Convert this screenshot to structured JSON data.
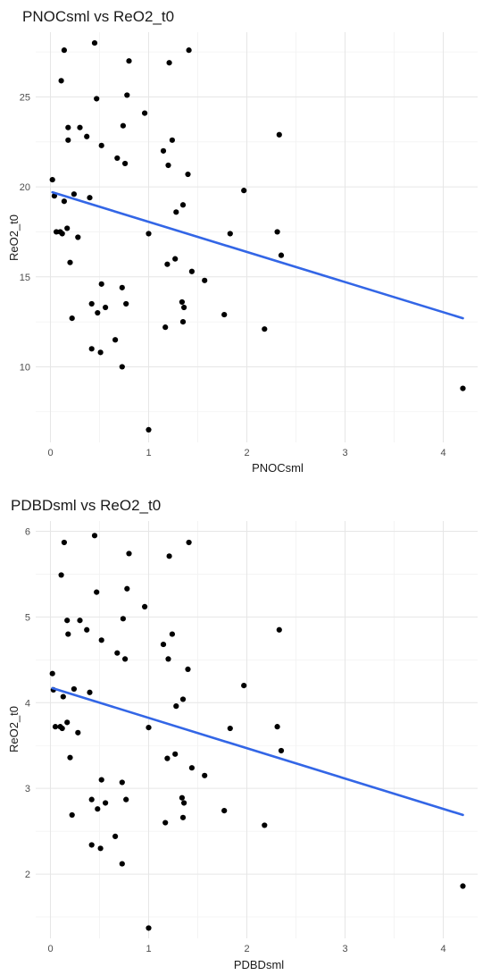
{
  "accent_color": "#3366e6",
  "point_color": "#000000",
  "chart_data": [
    {
      "type": "scatter",
      "title": "PNOCsml vs ReO2_t0",
      "xlabel": "PNOCsml",
      "ylabel": "ReO2_t0",
      "xlim": [
        -0.15,
        4.35
      ],
      "ylim": [
        5.8,
        28.6
      ],
      "xticks": [
        0,
        1,
        2,
        3,
        4
      ],
      "yticks": [
        10,
        15,
        20,
        25
      ],
      "grid": true,
      "legend": "none",
      "trend_line": {
        "x": [
          0.02,
          4.2
        ],
        "y": [
          19.7,
          12.7
        ]
      },
      "points": [
        {
          "x": 0.02,
          "y": 20.4
        },
        {
          "x": 0.04,
          "y": 19.5
        },
        {
          "x": 0.06,
          "y": 17.5
        },
        {
          "x": 0.1,
          "y": 17.5
        },
        {
          "x": 0.11,
          "y": 25.9
        },
        {
          "x": 0.12,
          "y": 17.4
        },
        {
          "x": 0.14,
          "y": 19.2
        },
        {
          "x": 0.14,
          "y": 27.6
        },
        {
          "x": 0.17,
          "y": 17.7
        },
        {
          "x": 0.18,
          "y": 23.3
        },
        {
          "x": 0.18,
          "y": 22.6
        },
        {
          "x": 0.2,
          "y": 15.8
        },
        {
          "x": 0.22,
          "y": 12.7
        },
        {
          "x": 0.24,
          "y": 19.6
        },
        {
          "x": 0.28,
          "y": 17.2
        },
        {
          "x": 0.3,
          "y": 23.3
        },
        {
          "x": 0.37,
          "y": 22.8
        },
        {
          "x": 0.4,
          "y": 19.4
        },
        {
          "x": 0.42,
          "y": 13.5
        },
        {
          "x": 0.42,
          "y": 11.0
        },
        {
          "x": 0.45,
          "y": 28.0
        },
        {
          "x": 0.47,
          "y": 24.9
        },
        {
          "x": 0.48,
          "y": 13.0
        },
        {
          "x": 0.52,
          "y": 22.3
        },
        {
          "x": 0.51,
          "y": 10.8
        },
        {
          "x": 0.52,
          "y": 14.6
        },
        {
          "x": 0.56,
          "y": 13.3
        },
        {
          "x": 0.66,
          "y": 11.5
        },
        {
          "x": 0.68,
          "y": 21.6
        },
        {
          "x": 0.73,
          "y": 14.4
        },
        {
          "x": 0.73,
          "y": 10.0
        },
        {
          "x": 0.74,
          "y": 23.4
        },
        {
          "x": 0.76,
          "y": 21.3
        },
        {
          "x": 0.77,
          "y": 13.5
        },
        {
          "x": 0.78,
          "y": 25.1
        },
        {
          "x": 0.8,
          "y": 27.0
        },
        {
          "x": 0.96,
          "y": 24.1
        },
        {
          "x": 1.0,
          "y": 17.4
        },
        {
          "x": 1.0,
          "y": 6.5
        },
        {
          "x": 1.15,
          "y": 22.0
        },
        {
          "x": 1.17,
          "y": 12.2
        },
        {
          "x": 1.19,
          "y": 15.7
        },
        {
          "x": 1.2,
          "y": 21.2
        },
        {
          "x": 1.21,
          "y": 26.9
        },
        {
          "x": 1.24,
          "y": 22.6
        },
        {
          "x": 1.27,
          "y": 16.0
        },
        {
          "x": 1.28,
          "y": 18.6
        },
        {
          "x": 1.34,
          "y": 13.6
        },
        {
          "x": 1.35,
          "y": 19.0
        },
        {
          "x": 1.36,
          "y": 13.3
        },
        {
          "x": 1.35,
          "y": 12.5
        },
        {
          "x": 1.4,
          "y": 20.7
        },
        {
          "x": 1.41,
          "y": 27.6
        },
        {
          "x": 1.44,
          "y": 15.3
        },
        {
          "x": 1.57,
          "y": 14.8
        },
        {
          "x": 1.77,
          "y": 12.9
        },
        {
          "x": 1.83,
          "y": 17.4
        },
        {
          "x": 1.97,
          "y": 19.8
        },
        {
          "x": 2.18,
          "y": 12.1
        },
        {
          "x": 2.31,
          "y": 17.5
        },
        {
          "x": 2.33,
          "y": 22.9
        },
        {
          "x": 2.35,
          "y": 16.2
        },
        {
          "x": 4.2,
          "y": 8.8
        }
      ]
    },
    {
      "type": "scatter",
      "title": "PDBDsml vs ReO2_t0",
      "xlabel": "PDBDsml",
      "ylabel": "ReO2_t0",
      "xlim": [
        -0.15,
        4.35
      ],
      "ylim": [
        1.25,
        6.12
      ],
      "xticks": [
        0,
        1,
        2,
        3,
        4
      ],
      "yticks": [
        2,
        3,
        4,
        5,
        6
      ],
      "grid": true,
      "legend": "none",
      "trend_line": {
        "x": [
          0.02,
          4.2
        ],
        "y": [
          4.17,
          2.69
        ]
      },
      "points": [
        {
          "x": 0.02,
          "y": 4.34
        },
        {
          "x": 0.03,
          "y": 4.15
        },
        {
          "x": 0.05,
          "y": 3.72
        },
        {
          "x": 0.1,
          "y": 3.72
        },
        {
          "x": 0.11,
          "y": 5.49
        },
        {
          "x": 0.12,
          "y": 3.7
        },
        {
          "x": 0.13,
          "y": 4.07
        },
        {
          "x": 0.14,
          "y": 5.87
        },
        {
          "x": 0.17,
          "y": 4.96
        },
        {
          "x": 0.17,
          "y": 3.77
        },
        {
          "x": 0.18,
          "y": 4.8
        },
        {
          "x": 0.2,
          "y": 3.36
        },
        {
          "x": 0.22,
          "y": 2.69
        },
        {
          "x": 0.24,
          "y": 4.16
        },
        {
          "x": 0.28,
          "y": 3.65
        },
        {
          "x": 0.3,
          "y": 4.96
        },
        {
          "x": 0.37,
          "y": 4.85
        },
        {
          "x": 0.4,
          "y": 4.12
        },
        {
          "x": 0.42,
          "y": 2.87
        },
        {
          "x": 0.42,
          "y": 2.34
        },
        {
          "x": 0.45,
          "y": 5.95
        },
        {
          "x": 0.47,
          "y": 5.29
        },
        {
          "x": 0.48,
          "y": 2.76
        },
        {
          "x": 0.52,
          "y": 4.73
        },
        {
          "x": 0.51,
          "y": 2.3
        },
        {
          "x": 0.52,
          "y": 3.1
        },
        {
          "x": 0.56,
          "y": 2.83
        },
        {
          "x": 0.66,
          "y": 2.44
        },
        {
          "x": 0.68,
          "y": 4.58
        },
        {
          "x": 0.73,
          "y": 3.07
        },
        {
          "x": 0.73,
          "y": 2.12
        },
        {
          "x": 0.74,
          "y": 4.98
        },
        {
          "x": 0.76,
          "y": 4.51
        },
        {
          "x": 0.77,
          "y": 2.87
        },
        {
          "x": 0.78,
          "y": 5.33
        },
        {
          "x": 0.8,
          "y": 5.74
        },
        {
          "x": 0.96,
          "y": 5.12
        },
        {
          "x": 1.0,
          "y": 3.71
        },
        {
          "x": 1.0,
          "y": 1.37
        },
        {
          "x": 1.15,
          "y": 4.68
        },
        {
          "x": 1.17,
          "y": 2.6
        },
        {
          "x": 1.19,
          "y": 3.35
        },
        {
          "x": 1.2,
          "y": 4.51
        },
        {
          "x": 1.21,
          "y": 5.71
        },
        {
          "x": 1.24,
          "y": 4.8
        },
        {
          "x": 1.27,
          "y": 3.4
        },
        {
          "x": 1.28,
          "y": 3.96
        },
        {
          "x": 1.34,
          "y": 2.89
        },
        {
          "x": 1.35,
          "y": 4.04
        },
        {
          "x": 1.36,
          "y": 2.83
        },
        {
          "x": 1.35,
          "y": 2.66
        },
        {
          "x": 1.4,
          "y": 4.39
        },
        {
          "x": 1.41,
          "y": 5.87
        },
        {
          "x": 1.44,
          "y": 3.24
        },
        {
          "x": 1.57,
          "y": 3.15
        },
        {
          "x": 1.77,
          "y": 2.74
        },
        {
          "x": 1.83,
          "y": 3.7
        },
        {
          "x": 1.97,
          "y": 4.2
        },
        {
          "x": 2.18,
          "y": 2.57
        },
        {
          "x": 2.31,
          "y": 3.72
        },
        {
          "x": 2.33,
          "y": 4.85
        },
        {
          "x": 2.35,
          "y": 3.44
        },
        {
          "x": 4.2,
          "y": 1.86
        }
      ]
    }
  ]
}
